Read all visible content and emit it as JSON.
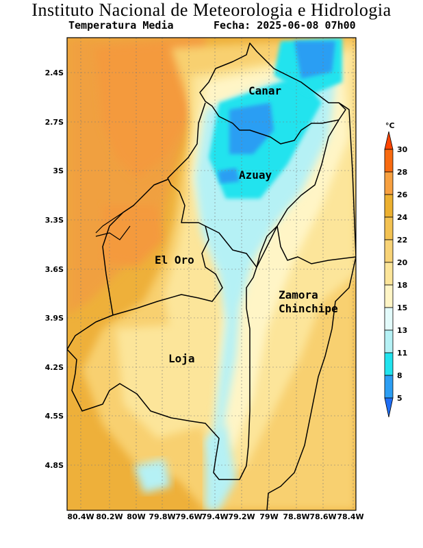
{
  "header": {
    "title": "Instituto Nacional de Meteorologia e Hidrologia",
    "subtitle": "Temperatura Media",
    "date": "Fecha: 2025-06-08 07h00"
  },
  "map": {
    "lat_ticks": [
      "2.4S",
      "2.7S",
      "3S",
      "3.3S",
      "3.6S",
      "3.9S",
      "4.2S",
      "4.5S",
      "4.8S"
    ],
    "lon_ticks": [
      "80.4W",
      "80.2W",
      "80W",
      "79.8W",
      "79.6W",
      "79.4W",
      "79.2W",
      "79W",
      "78.8W",
      "78.6W",
      "78.4W"
    ],
    "provinces": [
      {
        "name": "Canar"
      },
      {
        "name": "Azuay"
      },
      {
        "name": "El Oro"
      },
      {
        "name": "Zamora"
      },
      {
        "name": "Chinchipe"
      },
      {
        "name": "Loja"
      }
    ]
  },
  "legend": {
    "unit": "°C",
    "levels": [
      "30",
      "28",
      "26",
      "24",
      "22",
      "20",
      "18",
      "15",
      "13",
      "11",
      "8",
      "5"
    ],
    "colors": [
      "#ff4500",
      "#f86a10",
      "#f7a040",
      "#ecb030",
      "#f3c252",
      "#f8d377",
      "#fce59a",
      "#fff5c6",
      "#e3fbfb",
      "#b5f1f5",
      "#21e3ee",
      "#2c9ef3",
      "#1f6ef5"
    ]
  }
}
